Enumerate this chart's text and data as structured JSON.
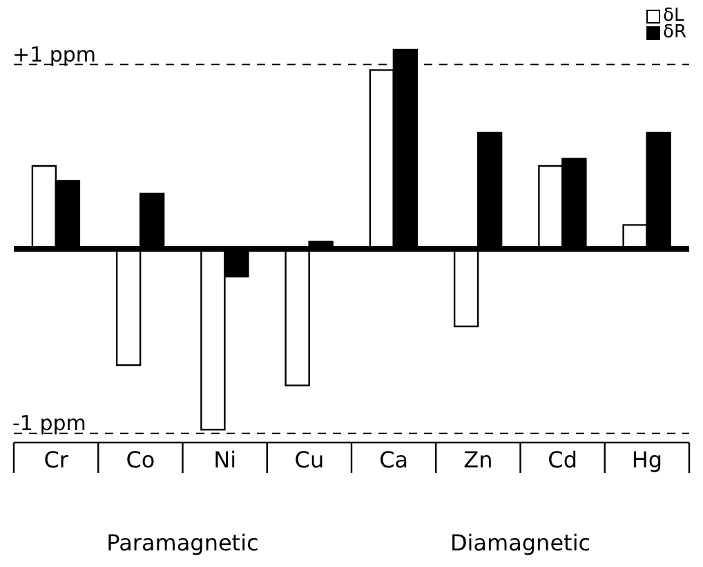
{
  "chart_data": {
    "type": "bar",
    "categories": [
      "Cr",
      "Co",
      "Ni",
      "Cu",
      "Ca",
      "Zn",
      "Cd",
      "Hg"
    ],
    "series": [
      {
        "name": "δL",
        "color": "#ffffff",
        "values": [
          0.45,
          -0.63,
          -0.98,
          -0.74,
          0.97,
          -0.42,
          0.45,
          0.13
        ]
      },
      {
        "name": "δR",
        "color": "#000000",
        "values": [
          0.37,
          0.3,
          -0.15,
          0.04,
          1.08,
          0.63,
          0.49,
          0.63
        ]
      }
    ],
    "ylim": [
      -1.05,
      1.35
    ],
    "ref_lines": [
      {
        "axis": "y",
        "value": 1,
        "label": "+1 ppm",
        "line_style": "dashed"
      },
      {
        "axis": "y",
        "value": -1,
        "label": "-1 ppm",
        "line_style": "dashed"
      }
    ],
    "annotations": [
      "Paramagnetic",
      "Diamagnetic"
    ],
    "legend": "top right",
    "tick_labels": "x"
  }
}
